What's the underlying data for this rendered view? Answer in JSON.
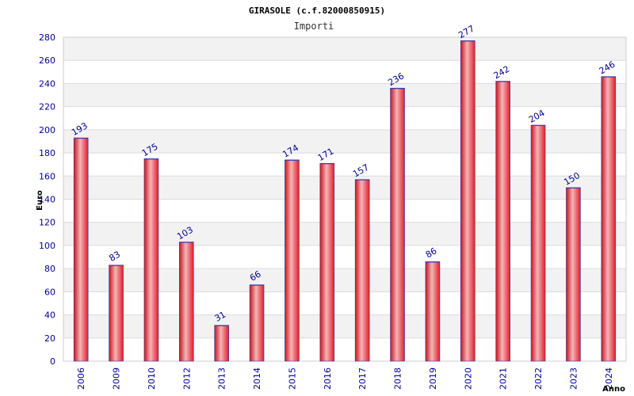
{
  "chart_data": {
    "type": "bar",
    "title": "GIRASOLE (c.f.82000850915)",
    "subtitle": "Importi",
    "xlabel": "Anno",
    "ylabel": "Euro",
    "ylim": [
      0,
      280
    ],
    "yticks": [
      0,
      20,
      40,
      60,
      80,
      100,
      120,
      140,
      160,
      180,
      200,
      220,
      240,
      260,
      280
    ],
    "grid": true,
    "categories": [
      "2006",
      "2009",
      "2010",
      "2012",
      "2013",
      "2014",
      "2015",
      "2016",
      "2017",
      "2018",
      "2019",
      "2020",
      "2021",
      "2022",
      "2023",
      "2024"
    ],
    "values": [
      193,
      83,
      175,
      103,
      31,
      66,
      174,
      171,
      157,
      236,
      86,
      277,
      242,
      204,
      150,
      246
    ],
    "colors": {
      "bar": "#e8232a",
      "bar_highlight": "#f5b5b8",
      "bar_edge": "#3a3aa8",
      "label": "#00008b",
      "band": "#f2f2f2"
    }
  }
}
